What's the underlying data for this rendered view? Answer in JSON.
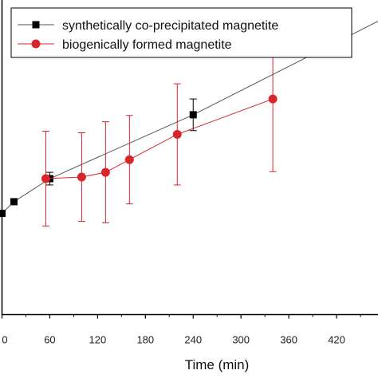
{
  "chart_data": {
    "type": "line",
    "xlabel": "Time (min)",
    "ylabel": "",
    "xlim": [
      0,
      480
    ],
    "ylim": [
      0,
      1
    ],
    "xticks": [
      0,
      60,
      120,
      180,
      240,
      300,
      360,
      420
    ],
    "xtick_labels": [
      "0",
      "60",
      "120",
      "180",
      "240",
      "300",
      "360",
      "420"
    ],
    "grid": false,
    "legend_position": "top-left",
    "series": [
      {
        "name": "synthetically co-precipitated magnetite",
        "color": "#000000",
        "line_color": "#555555",
        "marker": "square",
        "x": [
          0,
          15,
          60,
          240,
          480
        ],
        "y": [
          0.32,
          0.357,
          0.43,
          0.632,
          0.938
        ],
        "err": [
          0,
          0,
          0.02,
          0.05,
          0
        ]
      },
      {
        "name": "biogenically formed magnetite",
        "color": "#d9262b",
        "line_color": "#d9262b",
        "marker": "circle",
        "x": [
          55,
          100,
          130,
          160,
          220,
          340
        ],
        "y": [
          0.43,
          0.435,
          0.45,
          0.49,
          0.57,
          0.682
        ],
        "err": [
          0.15,
          0.14,
          0.16,
          0.14,
          0.16,
          0.23
        ]
      }
    ]
  }
}
